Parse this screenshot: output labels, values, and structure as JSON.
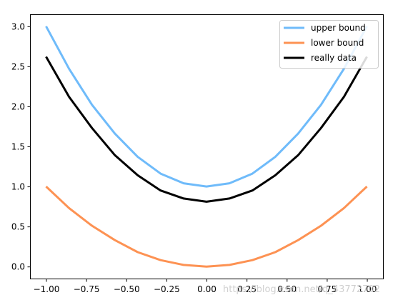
{
  "chart_data": {
    "type": "line",
    "title": "",
    "xlabel": "",
    "ylabel": "",
    "xlim": [
      -1.1,
      1.1
    ],
    "ylim": [
      -0.15,
      3.15
    ],
    "grid": false,
    "legend_position": "top-right",
    "x": [
      -1.0,
      -0.857,
      -0.714,
      -0.571,
      -0.429,
      -0.286,
      -0.143,
      0.0,
      0.143,
      0.286,
      0.429,
      0.571,
      0.714,
      0.857,
      1.0
    ],
    "series": [
      {
        "name": "upper bound",
        "color": "#6fbbfa",
        "values": [
          3.0,
          2.47,
          2.02,
          1.66,
          1.37,
          1.16,
          1.04,
          1.0,
          1.04,
          1.16,
          1.37,
          1.66,
          2.02,
          2.47,
          3.0
        ]
      },
      {
        "name": "lower bound",
        "color": "#fd9253",
        "values": [
          1.0,
          0.73,
          0.51,
          0.33,
          0.18,
          0.08,
          0.02,
          0.0,
          0.02,
          0.08,
          0.18,
          0.33,
          0.51,
          0.73,
          1.0
        ]
      },
      {
        "name": "really data",
        "color": "#000000",
        "values": [
          2.62,
          2.12,
          1.73,
          1.39,
          1.14,
          0.95,
          0.85,
          0.81,
          0.85,
          0.95,
          1.14,
          1.39,
          1.73,
          2.12,
          2.62
        ]
      }
    ],
    "xticks": [
      -1.0,
      -0.75,
      -0.5,
      -0.25,
      0.0,
      0.25,
      0.5,
      0.75,
      1.0
    ],
    "xtick_labels": [
      "−1.00",
      "−0.75",
      "−0.50",
      "−0.25",
      "0.00",
      "0.25",
      "0.50",
      "0.75",
      "1.00"
    ],
    "yticks": [
      0.0,
      0.5,
      1.0,
      1.5,
      2.0,
      2.5,
      3.0
    ],
    "ytick_labels": [
      "0.0",
      "0.5",
      "1.0",
      "1.5",
      "2.0",
      "2.5",
      "3.0"
    ]
  },
  "watermark": "https://blog.csdn.net/q_43772702"
}
